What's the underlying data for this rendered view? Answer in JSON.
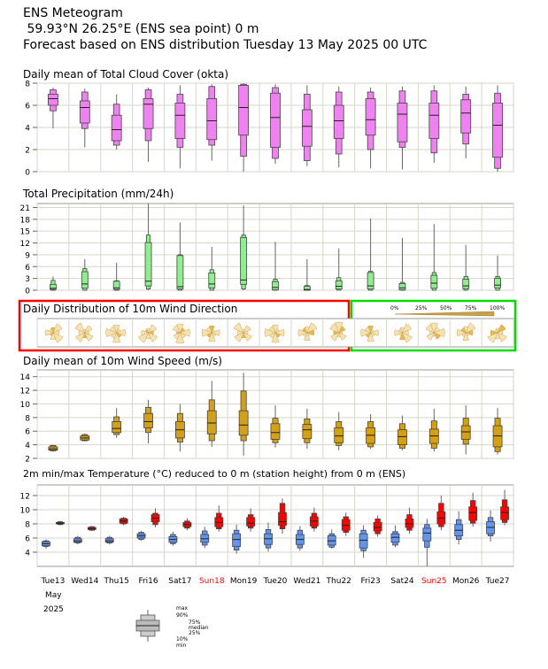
{
  "header": {
    "title": "ENS Meteogram",
    "location": "59.93°N 26.25°E (ENS sea point) 0 m",
    "forecast": "Forecast based on ENS distribution Tuesday 13 May 2025 00 UTC"
  },
  "colors": {
    "cloud": "#ee82ee",
    "precip": "#90ee90",
    "wind": "#d4a017",
    "temp_min": "#6495ed",
    "temp_max": "#ff0000",
    "weekend_label": "#ff0000",
    "highlight_red": "#ff0000",
    "highlight_green": "#00dd00"
  },
  "days": {
    "labels": [
      "Tue13",
      "Wed14",
      "Thu15",
      "Fri16",
      "Sat17",
      "Sun18",
      "Mon19",
      "Tue20",
      "Wed21",
      "Thu22",
      "Fri23",
      "Sat24",
      "Sun25",
      "Mon26",
      "Tue27"
    ],
    "weekend": [
      false,
      false,
      false,
      false,
      false,
      true,
      false,
      false,
      false,
      false,
      false,
      false,
      true,
      false,
      false
    ],
    "month": "May",
    "year": "2025"
  },
  "legend": {
    "max": "max",
    "p90": "90%",
    "p75": "75%",
    "median": "median",
    "p25": "25%",
    "p10": "10%",
    "min": "min"
  },
  "wind_direction_scale": {
    "labels": [
      "0%",
      "25%",
      "50%",
      "75%",
      "100%"
    ]
  },
  "chart_data": [
    {
      "type": "box",
      "title": "Daily mean of Total Cloud Cover (okta)",
      "ylim": [
        0,
        8
      ],
      "yticks": [
        0,
        2,
        4,
        6,
        8
      ],
      "series": [
        {
          "name": "",
          "values": [
            [
              3.9,
              5.5,
              6.0,
              6.6,
              7.0,
              7.4,
              7.6
            ],
            [
              2.2,
              3.9,
              4.4,
              5.8,
              6.4,
              7.2,
              7.5
            ],
            [
              2.0,
              2.4,
              2.8,
              3.8,
              5.1,
              6.1,
              7.0
            ],
            [
              0.9,
              2.8,
              3.9,
              6.1,
              6.6,
              7.4,
              7.6
            ],
            [
              0.3,
              2.2,
              3.0,
              5.1,
              6.2,
              7.0,
              7.8
            ],
            [
              1.0,
              2.4,
              2.9,
              4.6,
              6.6,
              7.7,
              7.9
            ],
            [
              0.0,
              1.4,
              3.3,
              5.8,
              7.8,
              7.9,
              8.0
            ],
            [
              0.7,
              1.2,
              2.2,
              4.9,
              7.1,
              7.6,
              7.9
            ],
            [
              0.5,
              1.0,
              2.3,
              4.1,
              5.6,
              7.0,
              7.8
            ],
            [
              0.4,
              1.6,
              3.0,
              4.6,
              6.0,
              7.2,
              7.7
            ],
            [
              0.3,
              2.0,
              3.3,
              4.7,
              6.6,
              7.2,
              7.6
            ],
            [
              0.2,
              2.2,
              2.7,
              5.2,
              6.2,
              7.3,
              7.7
            ],
            [
              0.8,
              1.7,
              3.0,
              5.1,
              6.2,
              7.3,
              7.8
            ],
            [
              1.2,
              2.5,
              3.5,
              5.3,
              6.5,
              7.0,
              7.7
            ],
            [
              0.0,
              0.3,
              1.3,
              4.2,
              6.2,
              7.1,
              7.8
            ]
          ]
        }
      ]
    },
    {
      "type": "box",
      "title": "Total Precipitation (mm/24h)",
      "ylim": [
        0,
        22
      ],
      "yticks": [
        0,
        3,
        6,
        9,
        12,
        15,
        18,
        21
      ],
      "series": [
        {
          "name": "",
          "values": [
            [
              0,
              0,
              0.2,
              0.5,
              1.5,
              2.5,
              3.5
            ],
            [
              0,
              0,
              0.5,
              1.6,
              4.7,
              5.5,
              7.9
            ],
            [
              0,
              0,
              0.2,
              0.6,
              2.3,
              2.4,
              7.0
            ],
            [
              0,
              0.3,
              1.1,
              2.3,
              12.1,
              14.0,
              22.0
            ],
            [
              0,
              0,
              0.3,
              0.9,
              8.8,
              9.0,
              17.2
            ],
            [
              0,
              0,
              0.6,
              1.6,
              4.4,
              5.2,
              11.0
            ],
            [
              0,
              0.3,
              1.5,
              2.6,
              13.4,
              14.0,
              21.5
            ],
            [
              0,
              0,
              0.1,
              0.7,
              2.2,
              2.8,
              12.3
            ],
            [
              0,
              0,
              0.0,
              0.2,
              1.0,
              1.2,
              7.9
            ],
            [
              0,
              0,
              0.3,
              1.0,
              2.4,
              3.2,
              10.6
            ],
            [
              0,
              0,
              0.3,
              1.1,
              4.5,
              4.8,
              18.2
            ],
            [
              0,
              0,
              0.1,
              0.6,
              1.7,
              2.0,
              13.3
            ],
            [
              0,
              0,
              0.5,
              1.8,
              3.8,
              4.5,
              16.8
            ],
            [
              0,
              0,
              0.4,
              1.1,
              2.8,
              3.5,
              11.5
            ],
            [
              0,
              0,
              0.6,
              1.3,
              3.0,
              3.5,
              8.8
            ]
          ]
        }
      ]
    },
    {
      "type": "box",
      "title": "Daily mean of 10m Wind Speed (m/s)",
      "ylim": [
        2,
        15
      ],
      "yticks": [
        2,
        4,
        6,
        8,
        10,
        12,
        14
      ],
      "series": [
        {
          "name": "",
          "values": [
            [
              3.0,
              3.1,
              3.2,
              3.4,
              3.7,
              3.9,
              4.0
            ],
            [
              4.5,
              4.6,
              4.7,
              5.0,
              5.3,
              5.5,
              5.7
            ],
            [
              5.0,
              5.5,
              5.8,
              6.4,
              7.4,
              8.1,
              9.4
            ],
            [
              4.2,
              5.8,
              6.5,
              7.4,
              8.6,
              9.5,
              10.6
            ],
            [
              3.0,
              4.4,
              5.0,
              6.2,
              7.4,
              8.6,
              10.0
            ],
            [
              3.7,
              4.6,
              5.6,
              7.2,
              9.0,
              10.6,
              13.4
            ],
            [
              2.4,
              4.6,
              5.4,
              6.9,
              9.0,
              11.9,
              14.6
            ],
            [
              3.6,
              4.3,
              4.8,
              5.8,
              7.1,
              7.9,
              9.8
            ],
            [
              3.4,
              4.3,
              4.9,
              6.2,
              7.0,
              7.8,
              9.3
            ],
            [
              3.2,
              3.9,
              4.3,
              5.3,
              6.5,
              7.4,
              8.8
            ],
            [
              3.4,
              3.7,
              4.2,
              5.4,
              6.5,
              7.4,
              8.5
            ],
            [
              3.2,
              3.5,
              4.0,
              5.2,
              6.2,
              7.1,
              8.3
            ],
            [
              3.0,
              3.5,
              4.2,
              5.3,
              6.3,
              7.5,
              9.3
            ],
            [
              2.6,
              4.1,
              4.8,
              5.9,
              6.8,
              7.9,
              9.8
            ],
            [
              2.6,
              3.0,
              3.7,
              5.3,
              6.8,
              7.9,
              9.4
            ]
          ]
        }
      ]
    },
    {
      "type": "box",
      "title": "2m min/max Temperature (°C) reduced to 0 m (station height) from 0 m (ENS)",
      "ylim": [
        2,
        13.5
      ],
      "yticks": [
        4,
        6,
        8,
        10,
        12
      ],
      "series": [
        {
          "name": "min",
          "values": [
            [
              4.5,
              4.8,
              4.9,
              5.2,
              5.5,
              5.6,
              5.8
            ],
            [
              5.1,
              5.3,
              5.4,
              5.6,
              5.9,
              6.1,
              6.3
            ],
            [
              5.1,
              5.3,
              5.4,
              5.6,
              5.9,
              6.1,
              6.3
            ],
            [
              5.6,
              5.8,
              6.0,
              6.3,
              6.6,
              6.8,
              7.0
            ],
            [
              4.9,
              5.2,
              5.4,
              5.8,
              6.2,
              6.5,
              6.9
            ],
            [
              4.6,
              5.0,
              5.4,
              5.9,
              6.5,
              7.0,
              7.6
            ],
            [
              3.8,
              4.3,
              4.8,
              5.8,
              6.6,
              7.1,
              7.9
            ],
            [
              4.1,
              4.6,
              5.1,
              5.9,
              6.6,
              7.2,
              8.2
            ],
            [
              4.2,
              4.6,
              5.1,
              5.8,
              6.5,
              7.1,
              7.7
            ],
            [
              4.5,
              4.7,
              5.0,
              5.6,
              6.3,
              6.6,
              7.2
            ],
            [
              3.2,
              4.2,
              4.6,
              5.7,
              6.6,
              7.1,
              7.8
            ],
            [
              4.7,
              5.0,
              5.4,
              6.1,
              6.6,
              6.9,
              7.8
            ],
            [
              2.0,
              4.7,
              5.6,
              6.7,
              7.4,
              7.9,
              8.7
            ],
            [
              5.1,
              5.8,
              6.3,
              7.1,
              7.9,
              8.6,
              9.8
            ],
            [
              5.5,
              6.3,
              6.6,
              7.5,
              8.3,
              8.9,
              9.9
            ]
          ]
        },
        {
          "name": "max",
          "values": [
            [
              7.8,
              7.9,
              8.0,
              8.1,
              8.2,
              8.3,
              8.4
            ],
            [
              7.0,
              7.1,
              7.2,
              7.3,
              7.5,
              7.6,
              7.7
            ],
            [
              7.8,
              8.0,
              8.1,
              8.4,
              8.7,
              8.8,
              9.0
            ],
            [
              7.5,
              7.9,
              8.3,
              8.8,
              9.3,
              9.5,
              10.2
            ],
            [
              7.1,
              7.4,
              7.6,
              7.9,
              8.2,
              8.4,
              8.8
            ],
            [
              6.9,
              7.3,
              7.6,
              8.2,
              8.9,
              9.5,
              10.6
            ],
            [
              6.9,
              7.4,
              7.7,
              8.1,
              8.9,
              9.3,
              10.2
            ],
            [
              6.6,
              7.3,
              7.8,
              8.3,
              9.6,
              10.9,
              11.6
            ],
            [
              6.9,
              7.4,
              7.7,
              8.4,
              9.0,
              9.5,
              10.3
            ],
            [
              6.3,
              6.8,
              7.1,
              7.8,
              8.6,
              9.0,
              9.6
            ],
            [
              6.2,
              6.6,
              7.0,
              7.5,
              8.2,
              8.7,
              9.2
            ],
            [
              6.6,
              7.1,
              7.5,
              8.0,
              8.7,
              9.3,
              10.3
            ],
            [
              7.1,
              7.6,
              8.0,
              8.8,
              9.7,
              10.9,
              12.0
            ],
            [
              7.6,
              8.1,
              8.5,
              9.6,
              10.4,
              11.3,
              12.4
            ],
            [
              7.8,
              8.2,
              8.6,
              9.6,
              10.4,
              11.4,
              12.8
            ]
          ]
        }
      ]
    }
  ]
}
